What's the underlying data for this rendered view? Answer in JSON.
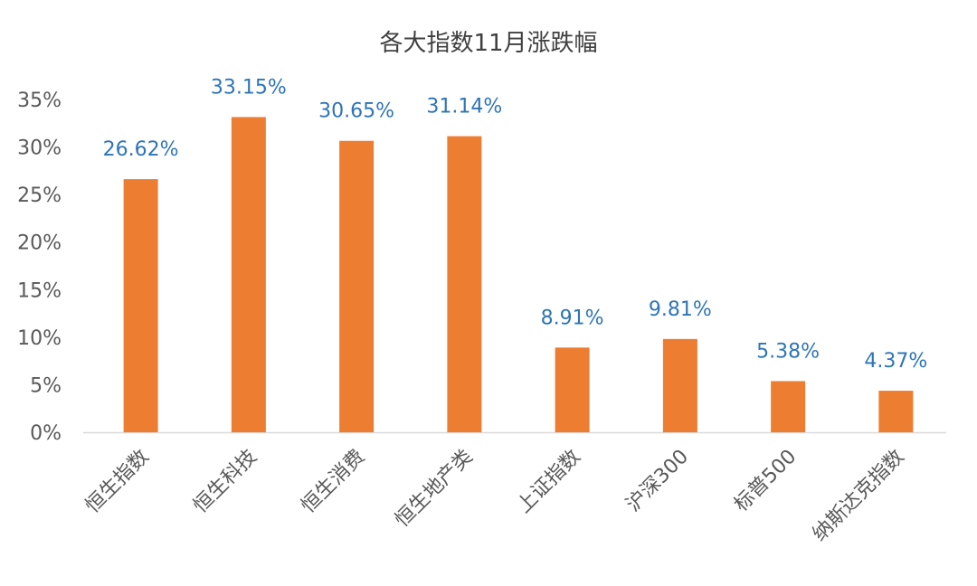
{
  "chart_data": {
    "type": "bar",
    "title": "各大指数11月涨跌幅",
    "xlabel": "",
    "ylabel": "",
    "categories": [
      "恒生指数",
      "恒生科技",
      "恒生消费",
      "恒生地产类",
      "上证指数",
      "沪深300",
      "标普500",
      "纳斯达克指数"
    ],
    "series": [
      {
        "values": [
          26.62,
          33.15,
          30.65,
          31.14,
          8.91,
          9.81,
          5.38,
          4.37
        ],
        "data_labels": [
          "26.62%",
          "33.15%",
          "30.65%",
          "31.14%",
          "8.91%",
          "9.81%",
          "5.38%",
          "4.37%"
        ],
        "color": "#ed7d31"
      }
    ],
    "yticks": [
      "0%",
      "5%",
      "10%",
      "15%",
      "20%",
      "25%",
      "30%",
      "35%"
    ],
    "ylim": [
      0,
      35
    ],
    "grid": false,
    "data_label_color": "#2e75b6"
  }
}
